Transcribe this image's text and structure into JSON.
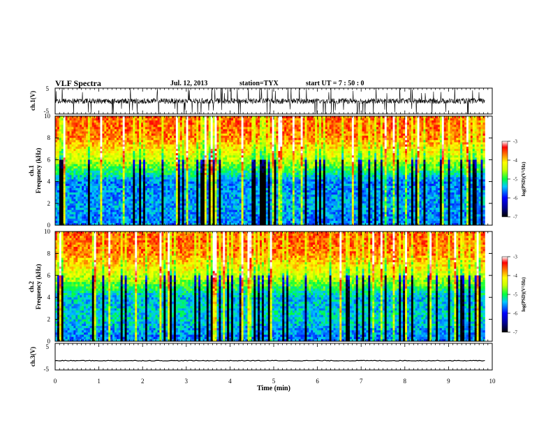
{
  "header": {
    "title": "VLF Spectra",
    "date": "Jul. 12, 2013",
    "station": "station=TYX",
    "start_ut": "start UT =  7 : 50 : 0"
  },
  "chart_data": [
    {
      "type": "line",
      "panel": "ch1-waveform",
      "ylabel": "ch.1(V)",
      "yticks": [
        "5",
        "-5"
      ],
      "ylim": [
        -5,
        5
      ],
      "xlim": [
        0,
        10
      ],
      "data_end_min": 9.83,
      "baseline_v": 0,
      "amplitude_v": 3.5,
      "style": "dense noisy signal with frequent spikes to full scale"
    },
    {
      "type": "heatmap",
      "panel": "ch1-spectrogram",
      "ylabel": "ch.1\nFrequency (kHz)",
      "ylabel_line1": "ch.1",
      "ylabel_line2": "Frequency (kHz)",
      "yticks": [
        "0",
        "2",
        "4",
        "6",
        "8",
        "10"
      ],
      "ylim": [
        0,
        10
      ],
      "xlim": [
        0,
        10
      ],
      "data_end_min": 9.83,
      "colorbar": {
        "label": "log(PSD)(V²/Hz)",
        "ticks": [
          "-3",
          "-4",
          "-5",
          "-6",
          "-7"
        ],
        "range": [
          -7,
          -3
        ]
      },
      "profile_log_psd": [
        {
          "freq_khz": 0.5,
          "value": -5.6
        },
        {
          "freq_khz": 2,
          "value": -5.5
        },
        {
          "freq_khz": 4,
          "value": -5.6
        },
        {
          "freq_khz": 5,
          "value": -5.0
        },
        {
          "freq_khz": 6,
          "value": -4.5
        },
        {
          "freq_khz": 8,
          "value": -3.7
        },
        {
          "freq_khz": 10,
          "value": -3.6
        }
      ]
    },
    {
      "type": "heatmap",
      "panel": "ch2-spectrogram",
      "ylabel": "ch.2\nFrequency (kHz)",
      "ylabel_line1": "ch.2",
      "ylabel_line2": "Frequency (kHz)",
      "yticks": [
        "0",
        "2",
        "4",
        "6",
        "8",
        "10"
      ],
      "ylim": [
        0,
        10
      ],
      "xlim": [
        0,
        10
      ],
      "data_end_min": 9.83,
      "colorbar": {
        "label": "log(PSD)(V²/Hz)",
        "ticks": [
          "-3",
          "-4",
          "-5",
          "-6",
          "-7"
        ],
        "range": [
          -7,
          -3
        ]
      },
      "profile_log_psd": [
        {
          "freq_khz": 0.5,
          "value": -5.6
        },
        {
          "freq_khz": 2,
          "value": -5.3
        },
        {
          "freq_khz": 4,
          "value": -5.4
        },
        {
          "freq_khz": 5,
          "value": -4.9
        },
        {
          "freq_khz": 6,
          "value": -4.4
        },
        {
          "freq_khz": 8,
          "value": -3.7
        },
        {
          "freq_khz": 10,
          "value": -3.6
        }
      ]
    },
    {
      "type": "line",
      "panel": "ch3-waveform",
      "ylabel": "ch.3(V)",
      "yticks": [
        "5",
        "-5"
      ],
      "ylim": [
        -5,
        5
      ],
      "xlim": [
        0,
        10
      ],
      "data_end_min": 9.83,
      "baseline_v": -1.5,
      "style": "flat trace near baseline"
    }
  ],
  "xaxis": {
    "label": "Time (min)",
    "ticks": [
      "0",
      "1",
      "2",
      "3",
      "4",
      "5",
      "6",
      "7",
      "8",
      "9",
      "10"
    ]
  }
}
